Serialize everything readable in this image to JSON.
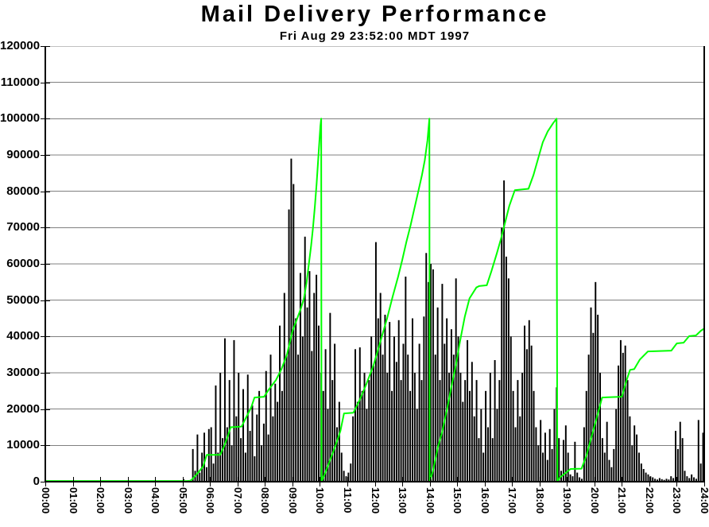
{
  "title": "Mail Delivery Performance",
  "subtitle": "Fri Aug 29 23:52:00 MDT 1997",
  "colors": {
    "background": "#ffffff",
    "bars": "#000000",
    "line": "#00ff00",
    "grid": "#808080",
    "axis": "#000000",
    "text": "#000000"
  },
  "chart_data": {
    "type": "bar",
    "title": "Mail Delivery Performance",
    "subtitle": "Fri Aug 29 23:52:00 MDT 1997",
    "grid": true,
    "legend": "none",
    "x_axis": {
      "unit": "time-of-day",
      "range_hours": [
        0,
        24
      ],
      "tick_interval_hours": 1,
      "labels": [
        "00:00",
        "01:00",
        "02:00",
        "03:00",
        "04:00",
        "05:00",
        "06:00",
        "07:00",
        "08:00",
        "09:00",
        "10:00",
        "11:00",
        "12:00",
        "13:00",
        "14:00",
        "15:00",
        "16:00",
        "17:00",
        "18:00",
        "19:00",
        "20:00",
        "21:00",
        "22:00",
        "23:00",
        "24:00"
      ]
    },
    "y_axis": {
      "min": 0,
      "max": 120000,
      "tick_step": 10000,
      "labels": [
        "0",
        "10000",
        "20000",
        "30000",
        "40000",
        "50000",
        "60000",
        "70000",
        "80000",
        "90000",
        "100000",
        "110000",
        "120000"
      ]
    },
    "bars": {
      "name": "mail-volume-spikes",
      "color": "#000000",
      "interval_minutes": 5,
      "values": [
        0,
        0,
        0,
        0,
        0,
        0,
        0,
        0,
        0,
        0,
        0,
        0,
        0,
        0,
        0,
        0,
        0,
        0,
        0,
        0,
        0,
        0,
        0,
        0,
        0,
        0,
        0,
        0,
        0,
        0,
        0,
        0,
        0,
        0,
        0,
        0,
        0,
        0,
        0,
        0,
        0,
        0,
        0,
        0,
        0,
        0,
        0,
        0,
        0,
        0,
        0,
        0,
        0,
        0,
        0,
        0,
        0,
        0,
        0,
        0,
        700,
        0,
        400,
        0,
        9000,
        3000,
        13000,
        2500,
        8000,
        13500,
        4000,
        14500,
        15000,
        5000,
        26500,
        8000,
        30000,
        12000,
        39500,
        15000,
        28000,
        10000,
        39000,
        18000,
        30000,
        12000,
        25500,
        8000,
        29500,
        14000,
        21000,
        7000,
        18500,
        25000,
        10000,
        16000,
        30500,
        13000,
        35000,
        18000,
        27000,
        22000,
        43000,
        25000,
        52000,
        35000,
        75000,
        89000,
        82000,
        45000,
        35000,
        57500,
        40000,
        67500,
        48000,
        58000,
        36000,
        52000,
        57000,
        43000,
        30000,
        25000,
        36500,
        20000,
        46500,
        28000,
        38000,
        15000,
        22000,
        8000,
        3000,
        1500,
        2500,
        5000,
        18000,
        36500,
        22000,
        37000,
        25000,
        30000,
        20000,
        28000,
        40000,
        32000,
        66000,
        45000,
        52000,
        35000,
        46000,
        30000,
        44000,
        25000,
        40000,
        33000,
        44500,
        28000,
        38000,
        56500,
        35000,
        25000,
        45000,
        30000,
        20000,
        38000,
        28000,
        45500,
        63000,
        55000,
        60000,
        58500,
        35000,
        48000,
        28000,
        54500,
        38000,
        45000,
        30000,
        42000,
        35000,
        56000,
        40000,
        30000,
        22000,
        28000,
        39000,
        25000,
        33000,
        18000,
        28000,
        12000,
        20000,
        8000,
        25000,
        15000,
        30000,
        12000,
        33500,
        20000,
        28000,
        70000,
        83000,
        62000,
        56000,
        40000,
        25000,
        15000,
        28000,
        18000,
        30000,
        43000,
        36500,
        44500,
        37500,
        25000,
        15000,
        10000,
        17000,
        8000,
        13500,
        6000,
        14500,
        9000,
        20000,
        26000,
        12000,
        3000,
        11500,
        15500,
        8000,
        2000,
        1500,
        11000,
        2500,
        1200,
        800,
        15000,
        25000,
        35000,
        48000,
        41000,
        55000,
        46000,
        30000,
        12000,
        8000,
        16500,
        6000,
        4000,
        9000,
        20000,
        32000,
        39000,
        35500,
        37500,
        28000,
        18000,
        10000,
        15500,
        13000,
        8000,
        5000,
        3500,
        2500,
        2000,
        1500,
        1200,
        800,
        600,
        1000,
        700,
        500,
        800,
        600,
        1500,
        1000,
        14000,
        9000,
        16500,
        12000,
        3000,
        1500,
        1000,
        2000,
        1200,
        800,
        17000,
        5000,
        13500
      ]
    },
    "line": {
      "name": "cumulative-deliveries",
      "color": "#00ff00",
      "resets_at": 100000,
      "reset_times_hours": [
        10.05,
        14.0,
        18.65
      ],
      "points": [
        [
          0,
          200
        ],
        [
          5.25,
          200
        ],
        [
          5.33,
          500
        ],
        [
          5.45,
          1500
        ],
        [
          5.6,
          2800
        ],
        [
          5.75,
          4200
        ],
        [
          5.88,
          7400
        ],
        [
          6.37,
          7400
        ],
        [
          6.5,
          9500
        ],
        [
          6.62,
          12000
        ],
        [
          6.75,
          15000
        ],
        [
          7.15,
          15200
        ],
        [
          7.3,
          17500
        ],
        [
          7.5,
          20500
        ],
        [
          7.62,
          23200
        ],
        [
          7.97,
          23400
        ],
        [
          8.15,
          25500
        ],
        [
          8.4,
          28000
        ],
        [
          8.6,
          31000
        ],
        [
          8.8,
          35000
        ],
        [
          9.0,
          41400
        ],
        [
          9.15,
          44500
        ],
        [
          9.3,
          47500
        ],
        [
          9.42,
          50500
        ],
        [
          9.52,
          55000
        ],
        [
          9.6,
          60000
        ],
        [
          9.68,
          65000
        ],
        [
          9.75,
          70000
        ],
        [
          9.82,
          76000
        ],
        [
          9.88,
          82000
        ],
        [
          9.95,
          90000
        ],
        [
          10.02,
          98000
        ],
        [
          10.05,
          100000
        ],
        [
          10.06,
          0
        ],
        [
          10.2,
          2500
        ],
        [
          10.35,
          5500
        ],
        [
          10.55,
          9500
        ],
        [
          10.75,
          14000
        ],
        [
          10.88,
          18800
        ],
        [
          11.22,
          19000
        ],
        [
          11.45,
          22500
        ],
        [
          11.7,
          27000
        ],
        [
          11.95,
          32000
        ],
        [
          12.2,
          38500
        ],
        [
          12.45,
          45000
        ],
        [
          12.65,
          51000
        ],
        [
          12.85,
          56500
        ],
        [
          13.0,
          61000
        ],
        [
          13.15,
          66000
        ],
        [
          13.3,
          70500
        ],
        [
          13.45,
          75500
        ],
        [
          13.6,
          80500
        ],
        [
          13.72,
          84500
        ],
        [
          13.82,
          88500
        ],
        [
          13.92,
          94000
        ],
        [
          13.99,
          100000
        ],
        [
          14.0,
          0
        ],
        [
          14.12,
          3000
        ],
        [
          14.3,
          9500
        ],
        [
          14.45,
          13500
        ],
        [
          14.62,
          19500
        ],
        [
          14.8,
          26500
        ],
        [
          14.95,
          32000
        ],
        [
          15.1,
          38500
        ],
        [
          15.28,
          45500
        ],
        [
          15.45,
          50500
        ],
        [
          15.7,
          53500
        ],
        [
          15.8,
          53900
        ],
        [
          16.08,
          54100
        ],
        [
          16.25,
          58000
        ],
        [
          16.45,
          63000
        ],
        [
          16.6,
          67000
        ],
        [
          16.75,
          71500
        ],
        [
          16.9,
          76000
        ],
        [
          17.1,
          80300
        ],
        [
          17.6,
          80700
        ],
        [
          17.78,
          84500
        ],
        [
          17.95,
          89000
        ],
        [
          18.12,
          93500
        ],
        [
          18.3,
          96500
        ],
        [
          18.5,
          98800
        ],
        [
          18.62,
          100000
        ],
        [
          18.65,
          0
        ],
        [
          18.75,
          1200
        ],
        [
          18.95,
          2400
        ],
        [
          19.13,
          3500
        ],
        [
          19.53,
          3600
        ],
        [
          19.7,
          7000
        ],
        [
          19.9,
          12500
        ],
        [
          20.1,
          18000
        ],
        [
          20.28,
          23200
        ],
        [
          21.0,
          23400
        ],
        [
          21.15,
          27500
        ],
        [
          21.3,
          30800
        ],
        [
          21.45,
          31000
        ],
        [
          21.65,
          33600
        ],
        [
          21.95,
          35900
        ],
        [
          22.8,
          36100
        ],
        [
          23.0,
          38100
        ],
        [
          23.25,
          38300
        ],
        [
          23.45,
          40100
        ],
        [
          23.7,
          40300
        ],
        [
          23.88,
          41600
        ],
        [
          24.0,
          42200
        ]
      ]
    }
  }
}
